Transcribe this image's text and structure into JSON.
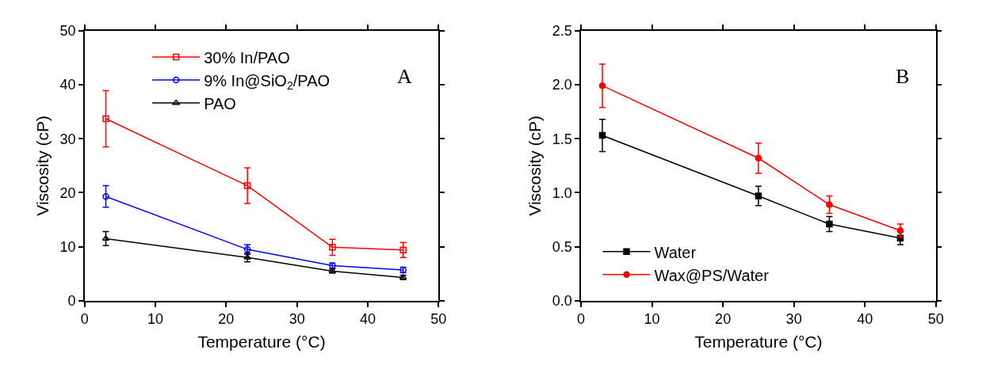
{
  "chart_data": [
    {
      "type": "line",
      "xlabel": "Temperature (°C)",
      "ylabel": "Viscosity (cP)",
      "x": [
        3,
        23,
        35,
        45
      ],
      "xlim": [
        0,
        50
      ],
      "xticks": [
        0,
        10,
        20,
        30,
        40,
        50
      ],
      "ylim": [
        0,
        50
      ],
      "yticks": [
        0,
        10,
        20,
        30,
        40,
        50
      ],
      "grid": false,
      "legend": "top left",
      "annotations": [
        "A"
      ],
      "series": [
        {
          "name": "30% In/PAO",
          "color": "#ff0000",
          "marker": "square",
          "values": [
            33.7,
            21.3,
            9.9,
            9.4
          ],
          "errors": [
            5.2,
            3.3,
            1.5,
            1.4
          ]
        },
        {
          "name": "9% In@SiO$_{2}$/PAO",
          "color": "#0000ff",
          "marker": "circle",
          "values": [
            19.3,
            9.5,
            6.5,
            5.7
          ],
          "errors": [
            2.0,
            0.9,
            0.5,
            0.5
          ]
        },
        {
          "name": "PAO",
          "color": "#000000",
          "marker": "triangle",
          "values": [
            11.5,
            8.0,
            5.5,
            4.3
          ],
          "errors": [
            1.3,
            0.8,
            0.4,
            0.4
          ]
        }
      ]
    },
    {
      "type": "line",
      "xlabel": "Temperature (°C)",
      "ylabel": "Viscosity (cP)",
      "x": [
        3,
        25,
        35,
        45
      ],
      "xlim": [
        0,
        50
      ],
      "xticks": [
        0,
        10,
        20,
        30,
        40,
        50
      ],
      "ylim": [
        0,
        2.5
      ],
      "yticks": [
        "0.0",
        0.5,
        "1.0",
        1.5,
        "2.0",
        2.5
      ],
      "grid": false,
      "legend": "bottom left",
      "annotations": [
        "B"
      ],
      "series": [
        {
          "name": "Water",
          "color": "#000000",
          "marker": "square",
          "values": [
            1.53,
            0.97,
            0.71,
            0.58
          ],
          "errors": [
            0.15,
            0.09,
            0.07,
            0.06
          ]
        },
        {
          "name": "Wax@PS/Water",
          "color": "#ff0000",
          "marker": "circle",
          "values": [
            1.99,
            1.32,
            0.89,
            0.65
          ],
          "errors": [
            0.2,
            0.14,
            0.08,
            0.06
          ]
        }
      ]
    }
  ]
}
